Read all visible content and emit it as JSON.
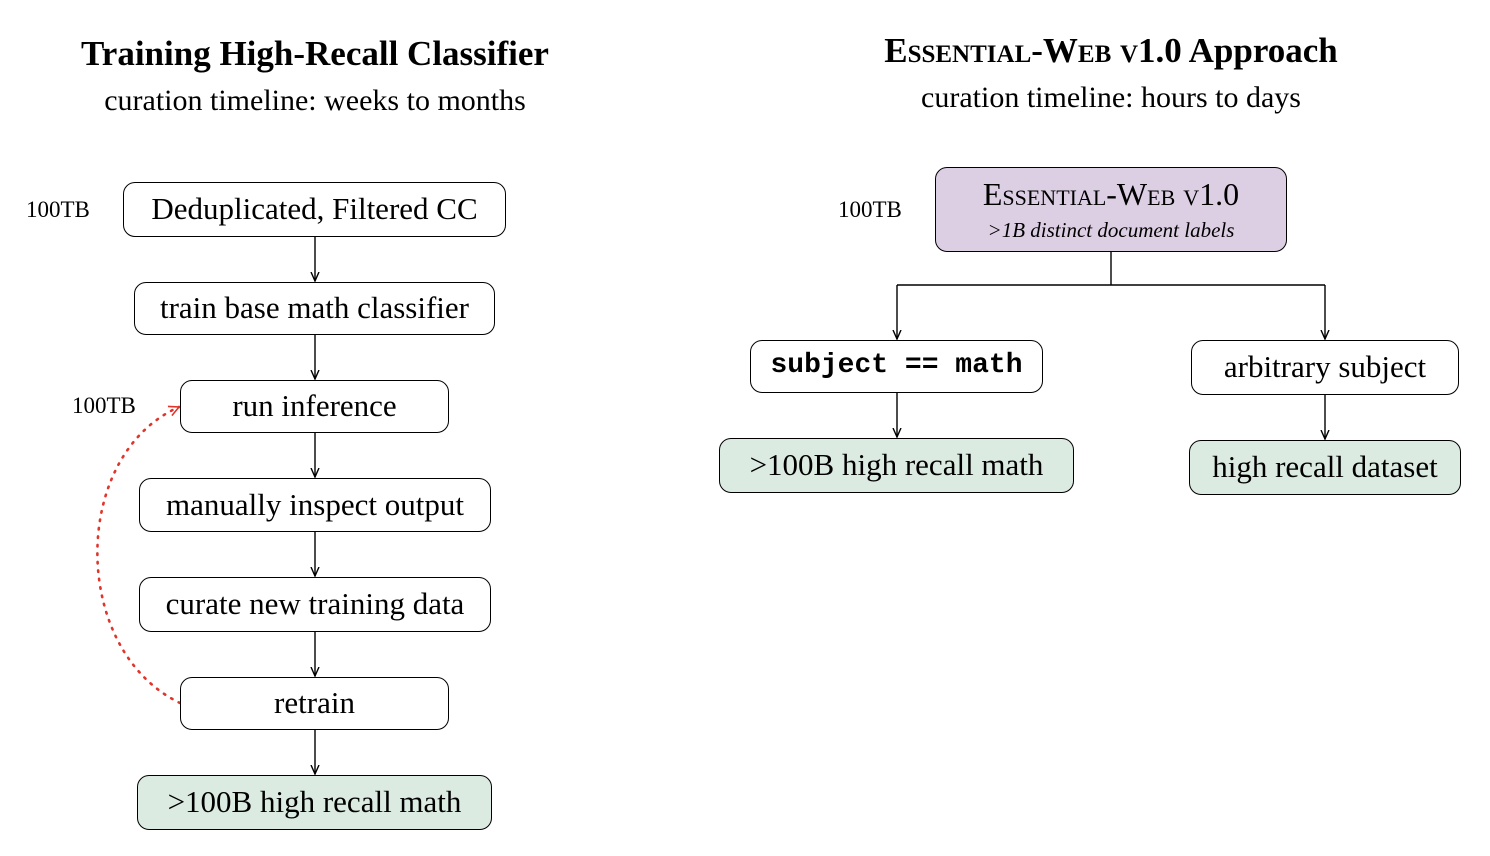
{
  "left": {
    "title": "Training High-Recall Classifier",
    "subtitle": "curation timeline: weeks to months",
    "input_size": "100TB",
    "inference_size": "100TB",
    "steps": {
      "input": "Deduplicated, Filtered CC",
      "train": "train base math classifier",
      "infer": "run inference",
      "inspect": "manually inspect output",
      "curate": "curate new training data",
      "retrain": "retrain",
      "output": ">100B high recall math"
    }
  },
  "right": {
    "title_sc": "Essential-Web v1.0",
    "title_rest": " Approach",
    "subtitle": "curation timeline: hours to days",
    "input_size": "100TB",
    "source": {
      "name": "Essential-Web v1.0",
      "detail": ">1B distinct document labels"
    },
    "branches": {
      "math_filter": "subject == math",
      "any_filter": "arbitrary subject",
      "math_output": ">100B high recall math",
      "any_output": "high recall dataset"
    }
  },
  "colors": {
    "output_fill": "#dcebe2",
    "source_fill": "#ddcfe3",
    "loop_arrow": "#e0352b"
  }
}
